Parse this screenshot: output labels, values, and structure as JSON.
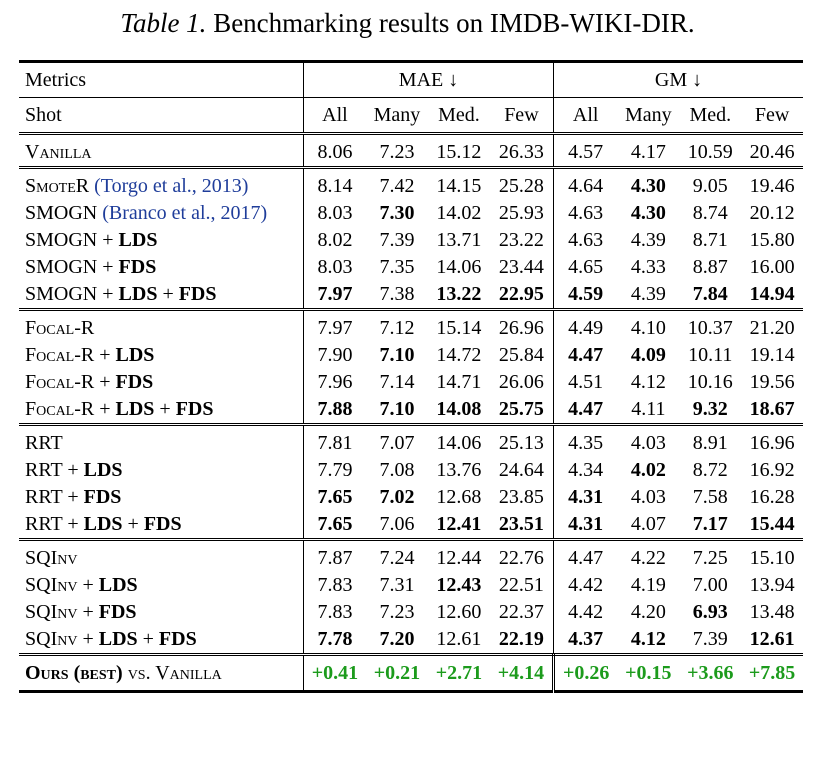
{
  "caption": {
    "lead": "Table 1.",
    "text": "Benchmarking results on IMDB-WIKI-DIR."
  },
  "header": {
    "metrics_label": "Metrics",
    "shot_label": "Shot",
    "mae_label": "MAE ↓",
    "gm_label": "GM ↓",
    "cols": [
      "All",
      "Many",
      "Med.",
      "Few",
      "All",
      "Many",
      "Med.",
      "Few"
    ]
  },
  "groups": [
    {
      "rows": [
        {
          "name": "Vanilla",
          "cite": "",
          "suffix": "",
          "values": [
            "8.06",
            "7.23",
            "15.12",
            "26.33",
            "4.57",
            "4.17",
            "10.59",
            "20.46"
          ],
          "bold": []
        }
      ]
    },
    {
      "rows": [
        {
          "name": "SmoteR",
          "cite": "(Torgo et al., 2013)",
          "suffix": "",
          "values": [
            "8.14",
            "7.42",
            "14.15",
            "25.28",
            "4.64",
            "4.30",
            "9.05",
            "19.46"
          ],
          "bold": [
            5
          ]
        },
        {
          "name": "SMOGN",
          "cite": "(Branco et al., 2017)",
          "suffix": "",
          "values": [
            "8.03",
            "7.30",
            "14.02",
            "25.93",
            "4.63",
            "4.30",
            "8.74",
            "20.12"
          ],
          "bold": [
            1,
            5
          ]
        },
        {
          "name": "SMOGN",
          "cite": "",
          "suffix": "LDS",
          "values": [
            "8.02",
            "7.39",
            "13.71",
            "23.22",
            "4.63",
            "4.39",
            "8.71",
            "15.80"
          ],
          "bold": []
        },
        {
          "name": "SMOGN",
          "cite": "",
          "suffix": "FDS",
          "values": [
            "8.03",
            "7.35",
            "14.06",
            "23.44",
            "4.65",
            "4.33",
            "8.87",
            "16.00"
          ],
          "bold": []
        },
        {
          "name": "SMOGN",
          "cite": "",
          "suffix": "LDS + FDS",
          "values": [
            "7.97",
            "7.38",
            "13.22",
            "22.95",
            "4.59",
            "4.39",
            "7.84",
            "14.94"
          ],
          "bold": [
            0,
            2,
            3,
            4,
            6,
            7
          ]
        }
      ]
    },
    {
      "rows": [
        {
          "name": "Focal-R",
          "cite": "",
          "suffix": "",
          "values": [
            "7.97",
            "7.12",
            "15.14",
            "26.96",
            "4.49",
            "4.10",
            "10.37",
            "21.20"
          ],
          "bold": []
        },
        {
          "name": "Focal-R",
          "cite": "",
          "suffix": "LDS",
          "values": [
            "7.90",
            "7.10",
            "14.72",
            "25.84",
            "4.47",
            "4.09",
            "10.11",
            "19.14"
          ],
          "bold": [
            1,
            4,
            5
          ]
        },
        {
          "name": "Focal-R",
          "cite": "",
          "suffix": "FDS",
          "values": [
            "7.96",
            "7.14",
            "14.71",
            "26.06",
            "4.51",
            "4.12",
            "10.16",
            "19.56"
          ],
          "bold": []
        },
        {
          "name": "Focal-R",
          "cite": "",
          "suffix": "LDS + FDS",
          "values": [
            "7.88",
            "7.10",
            "14.08",
            "25.75",
            "4.47",
            "4.11",
            "9.32",
            "18.67"
          ],
          "bold": [
            0,
            1,
            2,
            3,
            4,
            6,
            7
          ]
        }
      ]
    },
    {
      "rows": [
        {
          "name": "RRT",
          "cite": "",
          "suffix": "",
          "values": [
            "7.81",
            "7.07",
            "14.06",
            "25.13",
            "4.35",
            "4.03",
            "8.91",
            "16.96"
          ],
          "bold": []
        },
        {
          "name": "RRT",
          "cite": "",
          "suffix": "LDS",
          "values": [
            "7.79",
            "7.08",
            "13.76",
            "24.64",
            "4.34",
            "4.02",
            "8.72",
            "16.92"
          ],
          "bold": [
            5
          ]
        },
        {
          "name": "RRT",
          "cite": "",
          "suffix": "FDS",
          "values": [
            "7.65",
            "7.02",
            "12.68",
            "23.85",
            "4.31",
            "4.03",
            "7.58",
            "16.28"
          ],
          "bold": [
            0,
            1,
            4
          ]
        },
        {
          "name": "RRT",
          "cite": "",
          "suffix": "LDS + FDS",
          "values": [
            "7.65",
            "7.06",
            "12.41",
            "23.51",
            "4.31",
            "4.07",
            "7.17",
            "15.44"
          ],
          "bold": [
            0,
            2,
            3,
            4,
            6,
            7
          ]
        }
      ]
    },
    {
      "rows": [
        {
          "name": "SQInv",
          "cite": "",
          "suffix": "",
          "values": [
            "7.87",
            "7.24",
            "12.44",
            "22.76",
            "4.47",
            "4.22",
            "7.25",
            "15.10"
          ],
          "bold": []
        },
        {
          "name": "SQInv",
          "cite": "",
          "suffix": "LDS",
          "values": [
            "7.83",
            "7.31",
            "12.43",
            "22.51",
            "4.42",
            "4.19",
            "7.00",
            "13.94"
          ],
          "bold": [
            2
          ]
        },
        {
          "name": "SQInv",
          "cite": "",
          "suffix": "FDS",
          "values": [
            "7.83",
            "7.23",
            "12.60",
            "22.37",
            "4.42",
            "4.20",
            "6.93",
            "13.48"
          ],
          "bold": [
            6
          ]
        },
        {
          "name": "SQInv",
          "cite": "",
          "suffix": "LDS + FDS",
          "values": [
            "7.78",
            "7.20",
            "12.61",
            "22.19",
            "4.37",
            "4.12",
            "7.39",
            "12.61"
          ],
          "bold": [
            0,
            1,
            3,
            4,
            5,
            7
          ]
        }
      ]
    }
  ],
  "final": {
    "name_bold": "Ours (best)",
    "name_rest": "vs. Vanilla",
    "values": [
      "+0.41",
      "+0.21",
      "+2.71",
      "+4.14",
      "+0.26",
      "+0.15",
      "+3.66",
      "+7.85"
    ],
    "color": "#1c9b1c"
  }
}
